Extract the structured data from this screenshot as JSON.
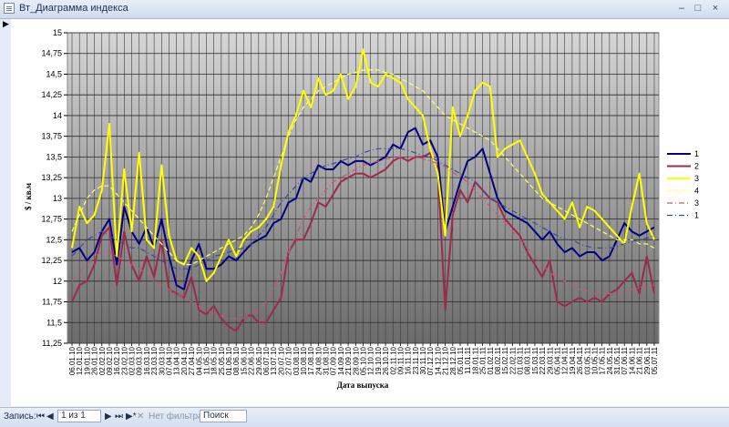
{
  "window": {
    "title": "Вт_Диаграмма индекса",
    "min_label": "‒",
    "max_label": "□",
    "close_label": "×"
  },
  "record_selector": "▶",
  "status_bar": {
    "records_label": "Запись:",
    "first": "⏮",
    "prev": "◀",
    "position": "1 из 1",
    "next": "▶",
    "last": "⏭",
    "new": "▶*",
    "filter_icon": "✕",
    "filter_label": "Нет фильтра",
    "search_placeholder": "Поиск"
  },
  "chart_data": {
    "type": "line",
    "xlabel": "Дата выпуска",
    "ylabel": "$ / кв.м",
    "ylim": [
      11.25,
      15
    ],
    "yticks": [
      "11,25",
      "11,5",
      "11,75",
      "12",
      "12,25",
      "12,5",
      "12,75",
      "13",
      "13,25",
      "13,5",
      "13,75",
      "14",
      "14,25",
      "14,5",
      "14,75",
      "15"
    ],
    "categories": [
      "06.01.10",
      "12.01.10",
      "19.01.10",
      "26.01.10",
      "02.02.10",
      "09.02.10",
      "16.02.10",
      "23.02.10",
      "02.03.10",
      "09.03.10",
      "16.03.10",
      "23.03.10",
      "30.03.10",
      "07.04.10",
      "13.04.10",
      "20.04.10",
      "27.04.10",
      "04.05.10",
      "11.05.10",
      "18.05.10",
      "25.05.10",
      "01.06.10",
      "08.06.10",
      "15.06.10",
      "22.06.10",
      "29.06.10",
      "06.07.10",
      "13.07.10",
      "20.07.10",
      "27.07.10",
      "03.08.10",
      "10.08.10",
      "17.08.10",
      "24.08.10",
      "31.08.10",
      "07.09.10",
      "14.09.10",
      "21.09.10",
      "28.09.10",
      "05.10.10",
      "12.10.10",
      "19.10.10",
      "26.10.10",
      "02.11.10",
      "09.11.10",
      "16.11.10",
      "23.11.10",
      "30.11.10",
      "07.12.10",
      "14.12.10",
      "21.12.10",
      "28.12.10",
      "05.01.11",
      "11.01.11",
      "18.01.11",
      "25.01.11",
      "01.02.11",
      "08.02.11",
      "15.02.11",
      "22.02.11",
      "01.03.11",
      "08.03.11",
      "15.03.11",
      "22.03.11",
      "29.03.11",
      "05.04.11",
      "12.04.11",
      "19.04.11",
      "26.04.11",
      "03.05.11",
      "10.05.11",
      "17.05.11",
      "24.05.11",
      "31.05.11",
      "07.06.11",
      "14.06.11",
      "21.06.11",
      "29.06.11",
      "05.07.11"
    ],
    "series": [
      {
        "name": "1",
        "style": "solid",
        "color": "#000080",
        "values": [
          12.35,
          12.4,
          12.25,
          12.35,
          12.6,
          12.75,
          12.2,
          12.9,
          12.6,
          12.45,
          12.65,
          12.4,
          12.75,
          12.3,
          11.95,
          11.9,
          12.25,
          12.45,
          12.15,
          12.15,
          12.2,
          12.3,
          12.25,
          12.35,
          12.45,
          12.5,
          12.55,
          12.7,
          12.75,
          12.95,
          13.0,
          13.25,
          13.2,
          13.4,
          13.35,
          13.35,
          13.45,
          13.4,
          13.45,
          13.45,
          13.4,
          13.45,
          13.5,
          13.65,
          13.6,
          13.8,
          13.85,
          13.65,
          13.7,
          13.5,
          12.6,
          12.9,
          13.2,
          13.45,
          13.5,
          13.6,
          13.3,
          13.0,
          12.85,
          12.8,
          12.75,
          12.7,
          12.6,
          12.5,
          12.6,
          12.45,
          12.35,
          12.4,
          12.3,
          12.35,
          12.35,
          12.25,
          12.3,
          12.5,
          12.7,
          12.6,
          12.55,
          12.6,
          12.65
        ]
      },
      {
        "name": "2",
        "style": "solid",
        "color": "#9c2a4a",
        "values": [
          11.75,
          11.95,
          12.0,
          12.2,
          12.55,
          12.65,
          11.95,
          12.6,
          12.2,
          12.0,
          12.3,
          12.05,
          12.5,
          11.9,
          11.85,
          11.8,
          12.05,
          11.65,
          11.6,
          11.7,
          11.55,
          11.45,
          11.4,
          11.55,
          11.6,
          11.5,
          11.5,
          11.65,
          11.8,
          12.35,
          12.5,
          12.5,
          12.7,
          12.95,
          12.9,
          13.05,
          13.2,
          13.25,
          13.3,
          13.3,
          13.25,
          13.3,
          13.35,
          13.45,
          13.5,
          13.45,
          13.5,
          13.5,
          13.55,
          13.35,
          11.65,
          12.8,
          13.1,
          12.95,
          13.2,
          13.1,
          13.0,
          12.95,
          12.75,
          12.65,
          12.55,
          12.35,
          12.2,
          12.05,
          12.25,
          11.75,
          11.7,
          11.75,
          11.8,
          11.75,
          11.8,
          11.75,
          11.85,
          11.9,
          12.0,
          12.1,
          11.85,
          12.3,
          11.85
        ]
      },
      {
        "name": "3",
        "style": "solid",
        "color": "#ffff00",
        "values": [
          12.4,
          12.9,
          12.7,
          12.8,
          13.1,
          13.9,
          12.3,
          13.35,
          12.6,
          13.55,
          12.5,
          12.4,
          13.4,
          12.55,
          12.25,
          12.2,
          12.4,
          12.3,
          12.0,
          12.1,
          12.3,
          12.5,
          12.3,
          12.5,
          12.6,
          12.65,
          12.75,
          12.9,
          13.4,
          13.8,
          14.0,
          14.3,
          14.1,
          14.45,
          14.25,
          14.3,
          14.5,
          14.2,
          14.35,
          14.8,
          14.4,
          14.35,
          14.5,
          14.45,
          14.4,
          14.2,
          14.1,
          14.0,
          13.6,
          13.3,
          12.55,
          14.1,
          13.75,
          14.0,
          14.3,
          14.4,
          14.35,
          13.5,
          13.6,
          13.65,
          13.7,
          13.5,
          13.3,
          13.05,
          12.95,
          12.85,
          12.75,
          12.95,
          12.65,
          12.9,
          12.85,
          12.75,
          12.65,
          12.55,
          12.45,
          12.9,
          13.3,
          12.7,
          12.5
        ]
      },
      {
        "name": "4",
        "style": "dash",
        "color": "#ffff66",
        "values": [
          12.6,
          12.8,
          13.0,
          13.1,
          13.15,
          13.15,
          13.05,
          12.95,
          12.85,
          12.75,
          12.65,
          12.55,
          12.45,
          12.35,
          12.25,
          12.2,
          12.2,
          12.25,
          12.3,
          12.35,
          12.4,
          12.45,
          12.5,
          12.55,
          12.65,
          12.8,
          13.0,
          13.25,
          13.5,
          13.75,
          13.95,
          14.1,
          14.2,
          14.3,
          14.35,
          14.4,
          14.45,
          14.5,
          14.52,
          14.55,
          14.55,
          14.55,
          14.52,
          14.5,
          14.45,
          14.4,
          14.35,
          14.3,
          14.2,
          14.1,
          14.0,
          13.95,
          13.9,
          13.85,
          13.8,
          13.75,
          13.7,
          13.6,
          13.5,
          13.4,
          13.3,
          13.2,
          13.1,
          13.0,
          12.95,
          12.9,
          12.85,
          12.8,
          12.75,
          12.7,
          12.65,
          12.6,
          12.55,
          12.5,
          12.5,
          12.5,
          12.45,
          12.45,
          12.4
        ]
      },
      {
        "name": "3",
        "style": "dashdot",
        "color": "#cc5577",
        "values": [
          12.0,
          12.1,
          12.2,
          12.3,
          12.35,
          12.35,
          12.3,
          12.25,
          12.2,
          12.15,
          12.1,
          12.0,
          11.95,
          11.9,
          11.85,
          11.8,
          11.75,
          11.7,
          11.65,
          11.6,
          11.58,
          11.55,
          11.55,
          11.55,
          11.6,
          11.65,
          11.75,
          11.9,
          12.1,
          12.35,
          12.55,
          12.75,
          12.9,
          13.0,
          13.1,
          13.2,
          13.25,
          13.3,
          13.35,
          13.4,
          13.42,
          13.45,
          13.47,
          13.5,
          13.5,
          13.5,
          13.5,
          13.48,
          13.45,
          13.42,
          13.38,
          13.32,
          13.25,
          13.2,
          13.1,
          13.0,
          12.9,
          12.8,
          12.7,
          12.6,
          12.5,
          12.4,
          12.3,
          12.2,
          12.1,
          12.05,
          12.0,
          11.95,
          11.9,
          11.88,
          11.85,
          11.85,
          11.85,
          11.85,
          11.88,
          11.9,
          11.92,
          11.95,
          11.95
        ]
      },
      {
        "name": "1",
        "style": "dashdot",
        "color": "#3a4a9a",
        "values": [
          12.3,
          12.4,
          12.5,
          12.55,
          12.6,
          12.55,
          12.5,
          12.45,
          12.4,
          12.4,
          12.35,
          12.3,
          12.25,
          12.2,
          12.15,
          12.15,
          12.15,
          12.2,
          12.25,
          12.3,
          12.32,
          12.35,
          12.38,
          12.4,
          12.45,
          12.55,
          12.65,
          12.8,
          12.95,
          13.05,
          13.15,
          13.25,
          13.3,
          13.35,
          13.4,
          13.42,
          13.45,
          13.48,
          13.5,
          13.55,
          13.58,
          13.6,
          13.6,
          13.6,
          13.6,
          13.58,
          13.55,
          13.52,
          13.5,
          13.45,
          13.4,
          13.35,
          13.3,
          13.25,
          13.2,
          13.1,
          13.0,
          12.95,
          12.9,
          12.85,
          12.8,
          12.75,
          12.7,
          12.65,
          12.6,
          12.55,
          12.5,
          12.5,
          12.45,
          12.42,
          12.4,
          12.4,
          12.4,
          12.42,
          12.45,
          12.48,
          12.5,
          12.52,
          12.55
        ]
      }
    ],
    "legend_position": "right",
    "grid": true
  }
}
